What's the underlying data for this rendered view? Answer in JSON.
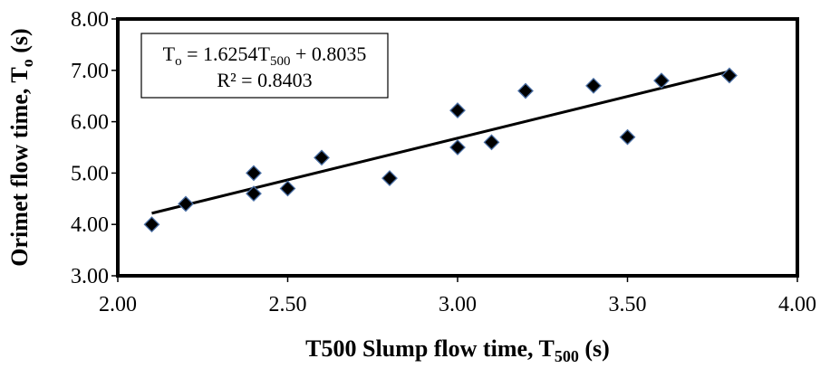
{
  "chart_data": {
    "type": "scatter",
    "title": "",
    "xlabel": {
      "main": "T500 Slump flow time, T",
      "sub": "500",
      "unit": " (s)"
    },
    "ylabel": {
      "main": "Orimet flow time, T",
      "sub": "o",
      "unit": " (s)"
    },
    "xlim": [
      2.0,
      4.0
    ],
    "ylim": [
      3.0,
      8.0
    ],
    "x_ticks": [
      "2.00",
      "2.50",
      "3.00",
      "3.50",
      "4.00"
    ],
    "y_ticks": [
      "3.00",
      "4.00",
      "5.00",
      "6.00",
      "7.00",
      "8.00"
    ],
    "grid": false,
    "marker": "diamond",
    "marker_color": "#000000",
    "marker_edge_color": "#4a6fa5",
    "points": [
      {
        "x": 2.1,
        "y": 4.0
      },
      {
        "x": 2.2,
        "y": 4.4
      },
      {
        "x": 2.4,
        "y": 4.6
      },
      {
        "x": 2.4,
        "y": 5.0
      },
      {
        "x": 2.5,
        "y": 4.7
      },
      {
        "x": 2.6,
        "y": 5.3
      },
      {
        "x": 2.8,
        "y": 4.9
      },
      {
        "x": 3.0,
        "y": 5.5
      },
      {
        "x": 3.0,
        "y": 6.22
      },
      {
        "x": 3.1,
        "y": 5.6
      },
      {
        "x": 3.2,
        "y": 6.6
      },
      {
        "x": 3.4,
        "y": 6.7
      },
      {
        "x": 3.5,
        "y": 5.7
      },
      {
        "x": 3.6,
        "y": 6.8
      },
      {
        "x": 3.8,
        "y": 6.9
      }
    ],
    "trendline": {
      "slope": 1.6254,
      "intercept": 0.8035,
      "x_range": [
        2.1,
        3.8
      ],
      "equation": {
        "lhs": "T",
        "lhs_sub": "o",
        "mid": " = 1.6254T",
        "mid_sub": "500",
        "rhs": " + 0.8035"
      },
      "r2_label": "R² = 0.8403"
    }
  }
}
